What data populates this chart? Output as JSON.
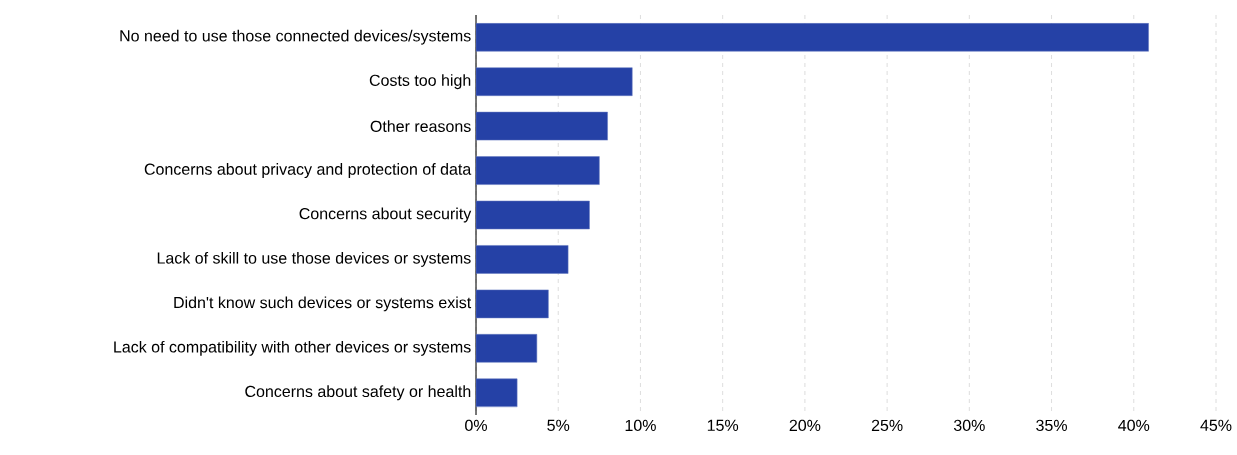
{
  "chart_data": {
    "type": "bar",
    "orientation": "horizontal",
    "categories": [
      "No need to use those connected devices/systems",
      "Costs too high",
      "Other reasons",
      "Concerns about privacy and protection of data",
      "Concerns about security",
      "Lack of skill to use those devices or systems",
      "Didn't know such devices or systems exist",
      "Lack of compatibility with other devices or systems",
      "Concerns about safety or health"
    ],
    "values": [
      40.9,
      9.5,
      8.0,
      7.5,
      6.9,
      5.6,
      4.4,
      3.7,
      2.5
    ],
    "color": "#2541a6",
    "xlim": [
      0,
      45
    ],
    "xticks": [
      {
        "value": 0,
        "label": "0%"
      },
      {
        "value": 5,
        "label": "5%"
      },
      {
        "value": 10,
        "label": "10%"
      },
      {
        "value": 15,
        "label": "15%"
      },
      {
        "value": 20,
        "label": "20%"
      },
      {
        "value": 25,
        "label": "25%"
      },
      {
        "value": 30,
        "label": "30%"
      },
      {
        "value": 35,
        "label": "35%"
      },
      {
        "value": 40,
        "label": "40%"
      },
      {
        "value": 45,
        "label": "45%"
      }
    ],
    "grid": "x"
  }
}
